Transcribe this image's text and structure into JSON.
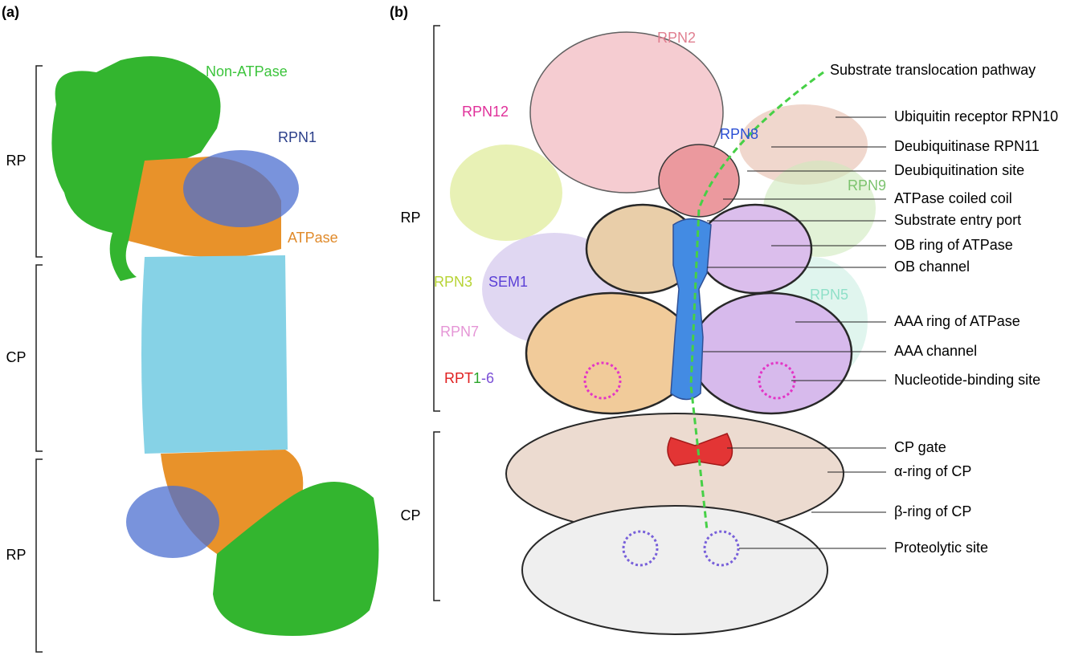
{
  "panel_a": {
    "label": "(a)",
    "brackets": [
      "RP",
      "CP",
      "RP"
    ],
    "subunits": [
      "Non-ATPase",
      "RPN1",
      "ATPase"
    ]
  },
  "panel_b": {
    "label": "(b)",
    "brackets": [
      "RP",
      "CP"
    ],
    "subunits": [
      "RPN2",
      "RPN12",
      "RPN8",
      "RPN9",
      "RPN3",
      "SEM1",
      "RPN5",
      "RPN7"
    ],
    "rpt": [
      "RPT",
      "1",
      "-6"
    ],
    "callouts": [
      "Substrate translocation pathway",
      "Ubiquitin receptor RPN10",
      "Deubiquitinase RPN11",
      "Deubiquitination site",
      "ATPase coiled coil",
      "Substrate entry port",
      "OB ring of ATPase",
      "OB channel",
      "AAA ring of ATPase",
      "AAA channel",
      "Nucleotide-binding site",
      "CP gate",
      "α-ring of CP",
      "β-ring of CP",
      "Proteolytic site"
    ]
  }
}
